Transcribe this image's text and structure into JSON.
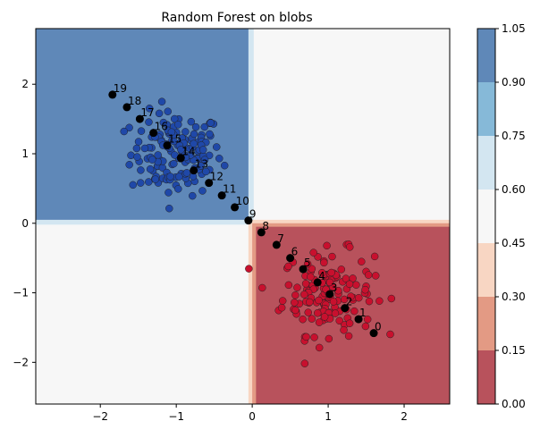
{
  "chart_data": {
    "type": "contour",
    "title": "Random Forest on blobs",
    "xlabel": "",
    "ylabel": "",
    "xlim": [
      -2.85,
      2.6
    ],
    "ylim": [
      -2.6,
      2.8
    ],
    "x_ticks": [
      -2,
      -1,
      0,
      1,
      2
    ],
    "y_ticks": [
      -2,
      -1,
      0,
      1,
      2
    ],
    "x_tick_labels": [
      "−2",
      "−1",
      "0",
      "1",
      "2"
    ],
    "y_tick_labels": [
      "−2",
      "−1",
      "0",
      "1",
      "2"
    ],
    "colorbar": {
      "levels": [
        0.0,
        0.15,
        0.3,
        0.45,
        0.6,
        0.75,
        0.9,
        1.05
      ],
      "tick_labels": [
        "0.00",
        "0.15",
        "0.30",
        "0.45",
        "0.60",
        "0.75",
        "0.90",
        "1.05"
      ],
      "colors": [
        "#b8525c",
        "#e39a84",
        "#f8d6c3",
        "#f7f7f7",
        "#d3e6f1",
        "#86b9d8",
        "#5f88b8"
      ]
    },
    "regions": {
      "blue_region": {
        "x": [
          -2.85,
          -0.05
        ],
        "y": [
          0.05,
          2.8
        ],
        "value": 0.95
      },
      "red_region": {
        "x": [
          0.05,
          2.6
        ],
        "y": [
          -2.6,
          -0.05
        ],
        "value": 0.05
      }
    },
    "clusters": [
      {
        "name": "blue",
        "center": [
          -1.0,
          1.0
        ],
        "spread": 0.3,
        "count": 150,
        "color": "#1f48a8"
      },
      {
        "name": "red",
        "center": [
          1.0,
          -1.0
        ],
        "spread": 0.3,
        "count": 150,
        "color": "#c8102e"
      }
    ],
    "path_points": [
      {
        "label": "0",
        "x": 1.6,
        "y": -1.58
      },
      {
        "label": "1",
        "x": 1.4,
        "y": -1.38
      },
      {
        "label": "2",
        "x": 1.22,
        "y": -1.22
      },
      {
        "label": "3",
        "x": 1.02,
        "y": -1.02
      },
      {
        "label": "4",
        "x": 0.86,
        "y": -0.85
      },
      {
        "label": "5",
        "x": 0.67,
        "y": -0.66
      },
      {
        "label": "6",
        "x": 0.5,
        "y": -0.5
      },
      {
        "label": "7",
        "x": 0.32,
        "y": -0.31
      },
      {
        "label": "8",
        "x": 0.12,
        "y": -0.13
      },
      {
        "label": "9",
        "x": -0.05,
        "y": 0.04
      },
      {
        "label": "10",
        "x": -0.23,
        "y": 0.23
      },
      {
        "label": "11",
        "x": -0.4,
        "y": 0.4
      },
      {
        "label": "12",
        "x": -0.57,
        "y": 0.58
      },
      {
        "label": "13",
        "x": -0.77,
        "y": 0.76
      },
      {
        "label": "14",
        "x": -0.94,
        "y": 0.94
      },
      {
        "label": "15",
        "x": -1.12,
        "y": 1.12
      },
      {
        "label": "16",
        "x": -1.3,
        "y": 1.3
      },
      {
        "label": "17",
        "x": -1.48,
        "y": 1.5
      },
      {
        "label": "18",
        "x": -1.65,
        "y": 1.67
      },
      {
        "label": "19",
        "x": -1.84,
        "y": 1.85
      }
    ]
  }
}
